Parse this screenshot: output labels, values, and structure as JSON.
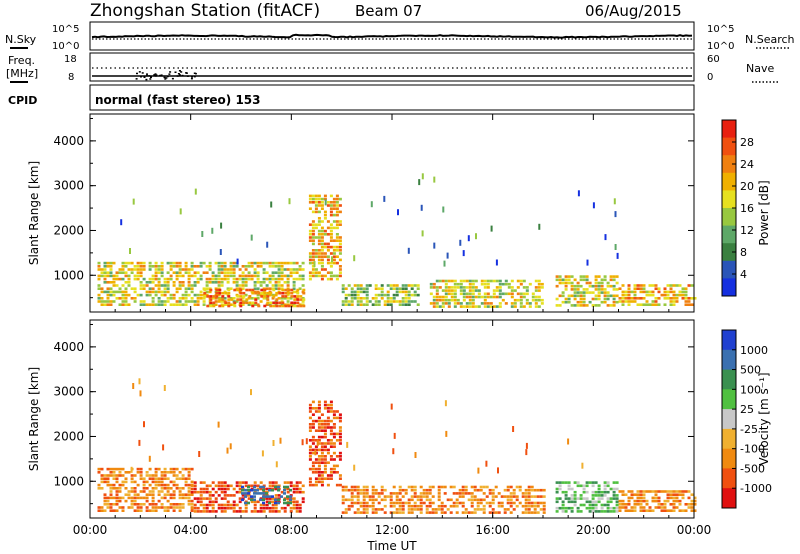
{
  "header": {
    "station": "Zhongshan Station (fitACF)",
    "beam": "Beam 07",
    "date": "06/Aug/2015"
  },
  "noise_panel": {
    "left_label": "N.Sky",
    "right_label": "N.Search",
    "top_tick": "10^5",
    "bottom_tick": "10^0"
  },
  "freq_panel": {
    "left_label_1": "Freq.",
    "left_label_2": "[MHz]",
    "right_label": "Nave",
    "left_ticks": [
      "18",
      "8"
    ],
    "right_ticks": [
      "60",
      "0"
    ]
  },
  "cpid": {
    "label": "CPID",
    "mode": "normal (fast stereo) 153"
  },
  "colors": {
    "power_scale": [
      "#1530e0",
      "#2a55b8",
      "#3a8040",
      "#5ea868",
      "#98c840",
      "#e6e020",
      "#f0b000",
      "#f08010",
      "#f05010",
      "#e82010"
    ],
    "velocity_scale": [
      "#e01010",
      "#f05010",
      "#f08a10",
      "#f0b030",
      "#c8c8c8",
      "#50c040",
      "#3a9050",
      "#3a70b0",
      "#2040d0"
    ]
  },
  "chart_data": [
    {
      "type": "heatmap",
      "title": "",
      "quantity": "Power",
      "xlabel": "",
      "ylabel": "Slant Range [km]",
      "xticks": [
        "00:00",
        "04:00",
        "08:00",
        "12:00",
        "16:00",
        "20:00",
        "00:00"
      ],
      "xlim_hours": [
        0,
        24
      ],
      "yticks": [
        "1000",
        "2000",
        "3000",
        "4000"
      ],
      "ylim_km": [
        180,
        4600
      ],
      "colorbar_label": "Power [dB]",
      "colorbar_ticks": [
        "4",
        "8",
        "12",
        "16",
        "20",
        "24",
        "28"
      ],
      "colorbar_range": [
        0,
        32
      ],
      "echo_regions": [
        {
          "t0": 0.3,
          "t1": 8.5,
          "r0": 300,
          "r1": 1300,
          "level": 18
        },
        {
          "t0": 4.5,
          "t1": 8.5,
          "r0": 300,
          "r1": 700,
          "level": 26
        },
        {
          "t0": 8.7,
          "t1": 10.0,
          "r0": 900,
          "r1": 2800,
          "level": 20
        },
        {
          "t0": 10.0,
          "t1": 13.0,
          "r0": 300,
          "r1": 800,
          "level": 14
        },
        {
          "t0": 13.5,
          "t1": 18.0,
          "r0": 300,
          "r1": 900,
          "level": 18
        },
        {
          "t0": 18.5,
          "t1": 21.0,
          "r0": 300,
          "r1": 1000,
          "level": 16
        },
        {
          "t0": 21.0,
          "t1": 24.0,
          "r0": 300,
          "r1": 800,
          "level": 22
        }
      ]
    },
    {
      "type": "heatmap",
      "title": "",
      "quantity": "Velocity",
      "xlabel": "Time UT",
      "ylabel": "Slant Range [km]",
      "xticks": [
        "00:00",
        "04:00",
        "08:00",
        "12:00",
        "16:00",
        "20:00",
        "00:00"
      ],
      "xlim_hours": [
        0,
        24
      ],
      "yticks": [
        "1000",
        "2000",
        "3000",
        "4000"
      ],
      "ylim_km": [
        180,
        4600
      ],
      "colorbar_label": "Velocity [m s⁻¹]",
      "colorbar_ticks": [
        "1000",
        "500",
        "100",
        "25",
        "-25",
        "-100",
        "-500",
        "-1000"
      ],
      "echo_regions": [
        {
          "t0": 0.3,
          "t1": 4.0,
          "r0": 300,
          "r1": 1300,
          "level": 2
        },
        {
          "t0": 4.0,
          "t1": 8.5,
          "r0": 300,
          "r1": 1000,
          "level": 1
        },
        {
          "t0": 6.0,
          "t1": 8.0,
          "r0": 500,
          "r1": 900,
          "level": 7
        },
        {
          "t0": 8.7,
          "t1": 10.0,
          "r0": 900,
          "r1": 2800,
          "level": 1
        },
        {
          "t0": 10.0,
          "t1": 18.0,
          "r0": 300,
          "r1": 900,
          "level": 2
        },
        {
          "t0": 18.5,
          "t1": 21.0,
          "r0": 300,
          "r1": 1000,
          "level": 5
        },
        {
          "t0": 21.0,
          "t1": 24.0,
          "r0": 300,
          "r1": 800,
          "level": 2
        }
      ]
    }
  ]
}
